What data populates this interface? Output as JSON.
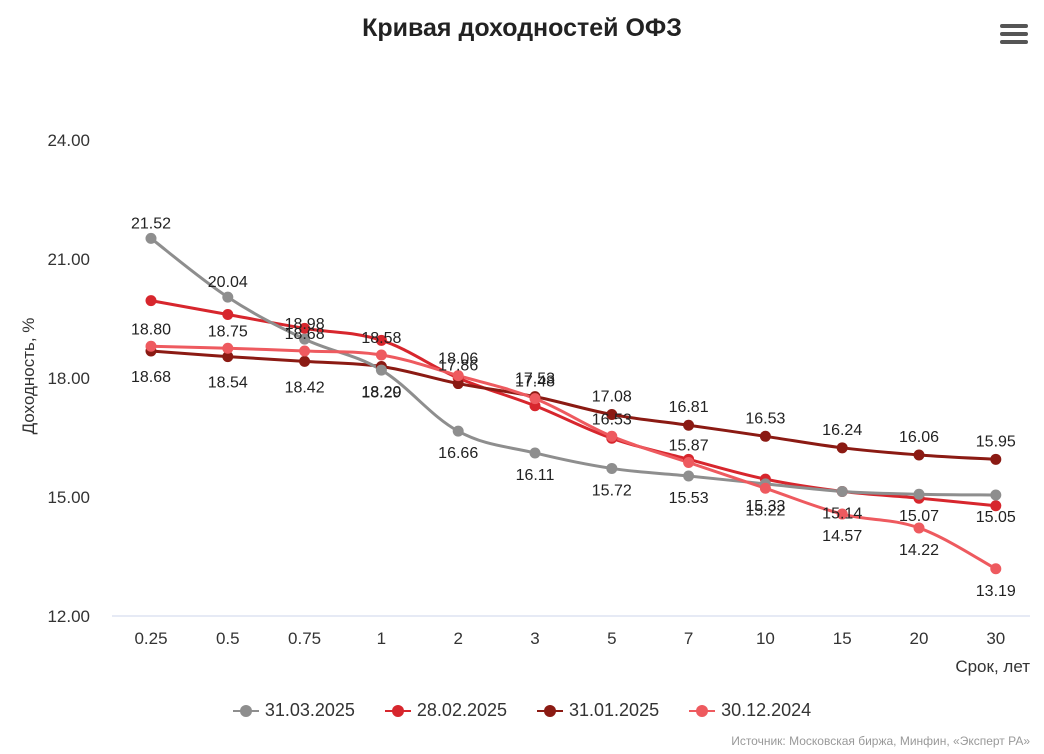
{
  "title": "Кривая доходностей ОФЗ",
  "menu_icon": "hamburger-menu-icon",
  "source": "Источник: Московская биржа, Минфин, «Эксперт РА»",
  "chart_data": {
    "type": "line",
    "title": "Кривая доходностей ОФЗ",
    "xlabel": "Срок, лет",
    "ylabel": "Доходность, %",
    "categories": [
      "0.25",
      "0.5",
      "0.75",
      "1",
      "2",
      "3",
      "5",
      "7",
      "10",
      "15",
      "20",
      "30"
    ],
    "ylim": [
      12,
      24
    ],
    "yticks": [
      "12.00",
      "15.00",
      "18.00",
      "21.00",
      "24.00"
    ],
    "grid": false,
    "legend_position": "bottom",
    "series": [
      {
        "name": "31.03.2025",
        "color": "#8e8e8e",
        "values": [
          21.52,
          20.04,
          18.98,
          18.2,
          16.66,
          16.11,
          15.72,
          15.53,
          15.33,
          15.14,
          15.07,
          15.05
        ],
        "labels": [
          "21.52",
          "20.04",
          "18.98",
          "18.20",
          "16.66",
          "16.11",
          "15.72",
          "15.53",
          "15.33",
          "15.14",
          "15.07",
          "15.05"
        ],
        "show_labels": true
      },
      {
        "name": "28.02.2025",
        "color": "#d7262d",
        "values": [
          19.95,
          19.6,
          19.25,
          18.95,
          18.0,
          17.3,
          16.48,
          15.95,
          15.45,
          15.14,
          14.97,
          14.78
        ],
        "labels": [],
        "show_labels": false
      },
      {
        "name": "31.01.2025",
        "color": "#8b1a13",
        "values": [
          18.68,
          18.54,
          18.42,
          18.29,
          17.86,
          17.53,
          17.08,
          16.81,
          16.53,
          16.24,
          16.06,
          15.95
        ],
        "labels": [
          "18.68",
          "18.54",
          "18.42",
          "18.29",
          "17.86",
          "17.53",
          "17.08",
          "16.81",
          "16.53",
          "16.24",
          "16.06",
          "15.95"
        ],
        "show_labels": true
      },
      {
        "name": "30.12.2024",
        "color": "#ee5a5f",
        "values": [
          18.8,
          18.75,
          18.68,
          18.58,
          18.06,
          17.48,
          16.53,
          15.87,
          15.22,
          14.57,
          14.22,
          13.19
        ],
        "labels": [
          "18.80",
          "18.75",
          "18.68",
          "18.58",
          "18.06",
          "17.48",
          "16.53",
          "15.87",
          "15.22",
          "14.57",
          "14.22",
          "13.19"
        ],
        "show_labels": true
      }
    ]
  }
}
